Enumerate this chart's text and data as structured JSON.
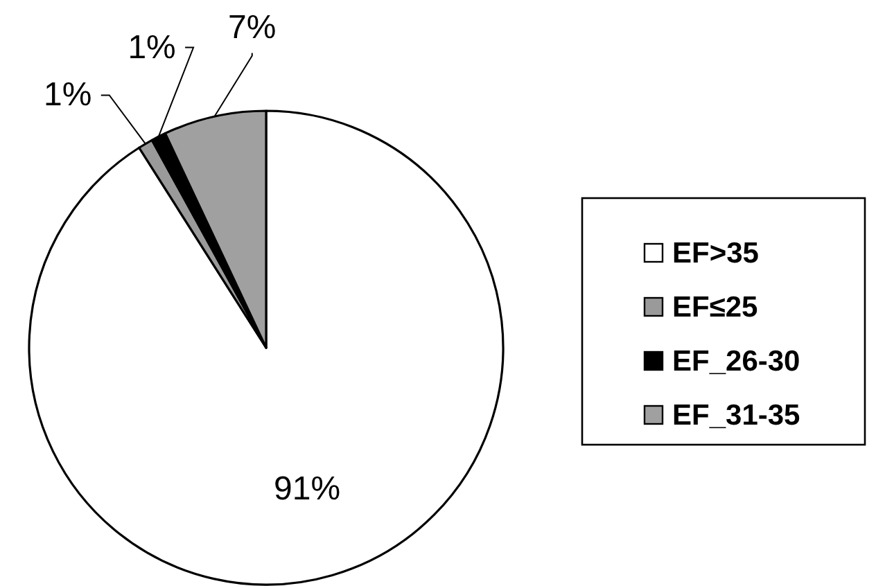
{
  "chart_data": {
    "type": "pie",
    "categories": [
      "EF>35",
      "EF≤25",
      "EF_26-30",
      "EF_31-35"
    ],
    "values": [
      91,
      1,
      1,
      7
    ],
    "colors": [
      "#ffffff",
      "#9a9a9a",
      "#000000",
      "#a0a0a0"
    ],
    "value_labels": [
      "91%",
      "1%",
      "1%",
      "7%"
    ],
    "legend": "right"
  }
}
